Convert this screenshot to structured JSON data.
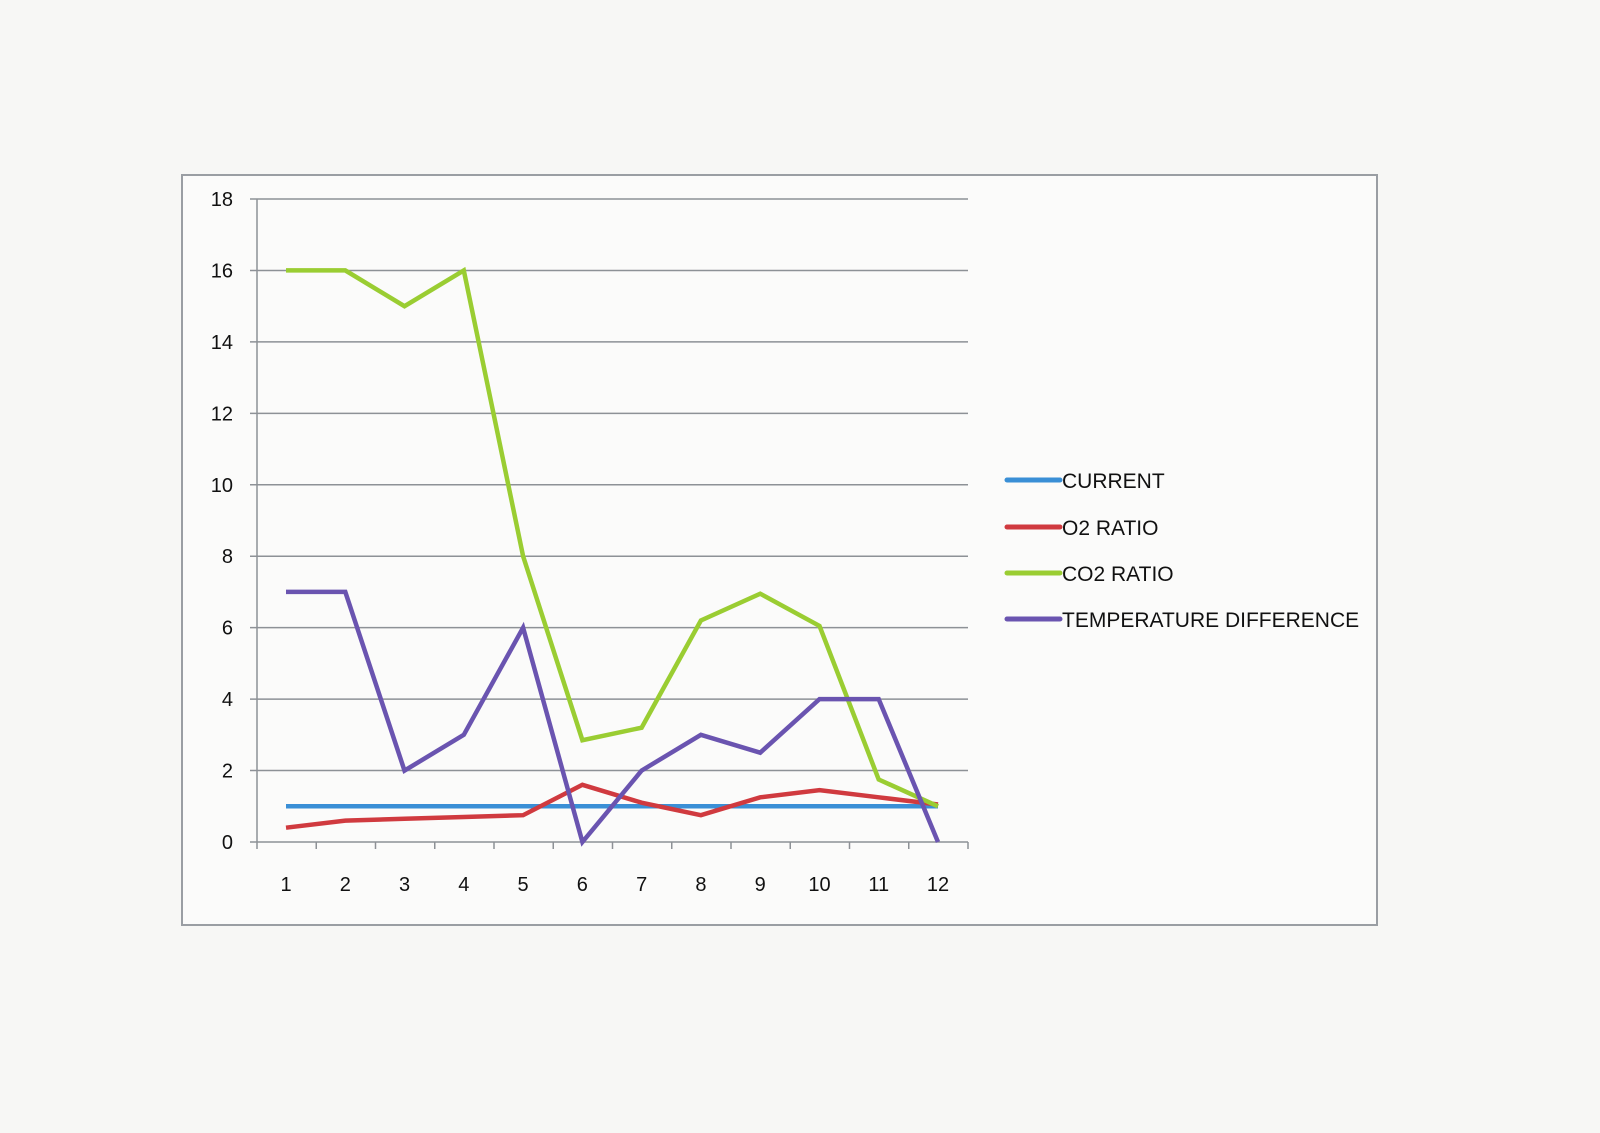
{
  "chart_data": {
    "type": "line",
    "title": "",
    "xlabel": "",
    "ylabel": "",
    "categories": [
      "1",
      "2",
      "3",
      "4",
      "5",
      "6",
      "7",
      "8",
      "9",
      "10",
      "11",
      "12"
    ],
    "y_ticks": [
      "0",
      "2",
      "4",
      "6",
      "8",
      "10",
      "12",
      "14",
      "16",
      "18"
    ],
    "ylim": [
      0,
      18
    ],
    "grid": true,
    "legend_position": "right",
    "series": [
      {
        "name": "CURRENT",
        "color": "#3a8fd6",
        "values": [
          1,
          1,
          1,
          1,
          1,
          1,
          1,
          1,
          1,
          1,
          1,
          1
        ]
      },
      {
        "name": "O2 RATIO",
        "color": "#d03a3f",
        "values": [
          0.4,
          0.6,
          0.65,
          0.7,
          0.75,
          1.6,
          1.1,
          0.75,
          1.25,
          1.45,
          1.25,
          1.05
        ]
      },
      {
        "name": "CO2 RATIO",
        "color": "#9acd32",
        "values": [
          16,
          16,
          15,
          16,
          8,
          2.85,
          3.2,
          6.2,
          6.95,
          6.05,
          1.75,
          1.0
        ]
      },
      {
        "name": "TEMPERATURE DIFFERENCE",
        "color": "#6a54b0",
        "values": [
          7,
          7,
          2,
          3,
          6,
          0,
          2,
          3,
          2.5,
          4,
          4,
          0
        ]
      }
    ]
  }
}
